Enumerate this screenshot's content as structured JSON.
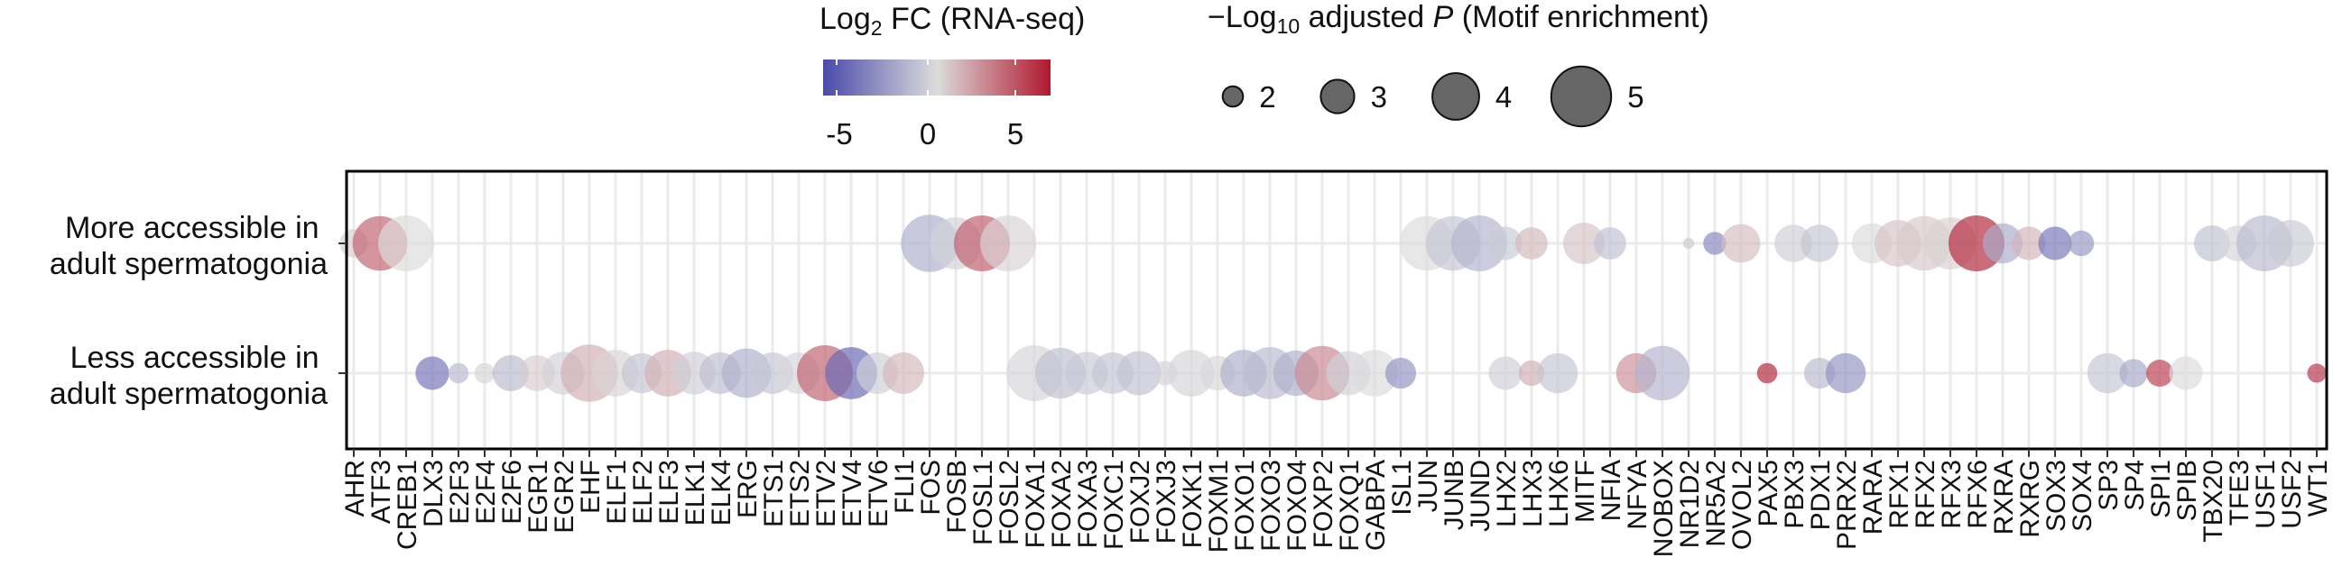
{
  "chart_data": {
    "type": "scatter",
    "subtype": "bubble",
    "x_categories": [
      "AHR",
      "ATF3",
      "CREB1",
      "DLX3",
      "E2F3",
      "E2F4",
      "E2F6",
      "EGR1",
      "EGR2",
      "EHF",
      "ELF1",
      "ELF2",
      "ELF3",
      "ELK1",
      "ELK4",
      "ERG",
      "ETS1",
      "ETS2",
      "ETV2",
      "ETV4",
      "ETV6",
      "FLI1",
      "FOS",
      "FOSB",
      "FOSL1",
      "FOSL2",
      "FOXA1",
      "FOXA2",
      "FOXA3",
      "FOXC1",
      "FOXJ2",
      "FOXJ3",
      "FOXK1",
      "FOXM1",
      "FOXO1",
      "FOXO3",
      "FOXO4",
      "FOXP2",
      "FOXQ1",
      "GABPA",
      "ISL1",
      "JUN",
      "JUNB",
      "JUND",
      "LHX2",
      "LHX3",
      "LHX6",
      "MITF",
      "NFIA",
      "NFYA",
      "NOBOX",
      "NR1D2",
      "NR5A2",
      "OVOL2",
      "PAX5",
      "PBX3",
      "PDX1",
      "PRRX2",
      "RARA",
      "RFX1",
      "RFX2",
      "RFX3",
      "RFX6",
      "RXRA",
      "RXRG",
      "SOX3",
      "SOX4",
      "SP3",
      "SP4",
      "SPI1",
      "SPIB",
      "TBX20",
      "TFE3",
      "USF1",
      "USF2",
      "WT1"
    ],
    "y_categories": [
      "More accessible in adult spermatogonia",
      "Less accessible in adult spermatogonia"
    ],
    "color_legend": {
      "title": "Log2 FC (RNA-seq)",
      "title_base": "Log",
      "title_sub": "2",
      "title_rest": " FC (RNA-seq)",
      "ticks": [
        "-5",
        "0",
        "5"
      ],
      "range": [
        -6.5,
        6.5
      ],
      "low_color": "#4a4aaa",
      "mid_color": "#dcdcdc",
      "high_color": "#b0182e"
    },
    "size_legend": {
      "title": "−Log10 adjusted P (Motif enrichment)",
      "title_minus": "−",
      "title_base": "Log",
      "title_sub": "10",
      "title_mid": " adjusted ",
      "title_italic": "P",
      "title_rest": " (Motif enrichment)",
      "values": [
        2,
        3,
        4,
        5
      ],
      "labels": [
        "2",
        "3",
        "4",
        "5"
      ]
    },
    "points": [
      {
        "x": "AHR",
        "y": "More accessible in adult spermatogonia",
        "size": 2.6,
        "color": 0.5
      },
      {
        "x": "ATF3",
        "y": "More accessible in adult spermatogonia",
        "size": 4.6,
        "color": 4.0
      },
      {
        "x": "CREB1",
        "y": "More accessible in adult spermatogonia",
        "size": 4.7,
        "color": 0.0
      },
      {
        "x": "FOS",
        "y": "More accessible in adult spermatogonia",
        "size": 4.8,
        "color": -2.0
      },
      {
        "x": "FOSB",
        "y": "More accessible in adult spermatogonia",
        "size": 4.4,
        "color": -0.5
      },
      {
        "x": "FOSL1",
        "y": "More accessible in adult spermatogonia",
        "size": 4.7,
        "color": 4.2
      },
      {
        "x": "FOSL2",
        "y": "More accessible in adult spermatogonia",
        "size": 4.7,
        "color": 0.3
      },
      {
        "x": "JUN",
        "y": "More accessible in adult spermatogonia",
        "size": 4.6,
        "color": 0.0
      },
      {
        "x": "JUNB",
        "y": "More accessible in adult spermatogonia",
        "size": 4.6,
        "color": -1.0
      },
      {
        "x": "JUND",
        "y": "More accessible in adult spermatogonia",
        "size": 4.7,
        "color": -1.8
      },
      {
        "x": "LHX2",
        "y": "More accessible in adult spermatogonia",
        "size": 3.0,
        "color": -0.8
      },
      {
        "x": "LHX3",
        "y": "More accessible in adult spermatogonia",
        "size": 2.9,
        "color": 1.2
      },
      {
        "x": "MITF",
        "y": "More accessible in adult spermatogonia",
        "size": 3.6,
        "color": 0.8
      },
      {
        "x": "NFIA",
        "y": "More accessible in adult spermatogonia",
        "size": 2.9,
        "color": -1.2
      },
      {
        "x": "NR1D2",
        "y": "More accessible in adult spermatogonia",
        "size": 1.3,
        "color": -0.8
      },
      {
        "x": "NR5A2",
        "y": "More accessible in adult spermatogonia",
        "size": 2.2,
        "color": -3.8
      },
      {
        "x": "OVOL2",
        "y": "More accessible in adult spermatogonia",
        "size": 3.4,
        "color": 1.0
      },
      {
        "x": "PBX3",
        "y": "More accessible in adult spermatogonia",
        "size": 3.3,
        "color": -0.6
      },
      {
        "x": "PDX1",
        "y": "More accessible in adult spermatogonia",
        "size": 3.3,
        "color": -1.0
      },
      {
        "x": "RARA",
        "y": "More accessible in adult spermatogonia",
        "size": 3.5,
        "color": 0.0
      },
      {
        "x": "RFX1",
        "y": "More accessible in adult spermatogonia",
        "size": 4.0,
        "color": 0.8
      },
      {
        "x": "RFX2",
        "y": "More accessible in adult spermatogonia",
        "size": 4.6,
        "color": 0.6
      },
      {
        "x": "RFX3",
        "y": "More accessible in adult spermatogonia",
        "size": 4.4,
        "color": 0.4
      },
      {
        "x": "RFX6",
        "y": "More accessible in adult spermatogonia",
        "size": 4.7,
        "color": 6.0
      },
      {
        "x": "RXRA",
        "y": "More accessible in adult spermatogonia",
        "size": 3.5,
        "color": -2.2
      },
      {
        "x": "RXRG",
        "y": "More accessible in adult spermatogonia",
        "size": 3.0,
        "color": 1.3
      },
      {
        "x": "SOX3",
        "y": "More accessible in adult spermatogonia",
        "size": 3.0,
        "color": -4.5
      },
      {
        "x": "SOX4",
        "y": "More accessible in adult spermatogonia",
        "size": 2.4,
        "color": -3.0
      },
      {
        "x": "TBX20",
        "y": "More accessible in adult spermatogonia",
        "size": 3.2,
        "color": -1.2
      },
      {
        "x": "TFE3",
        "y": "More accessible in adult spermatogonia",
        "size": 3.2,
        "color": -0.3
      },
      {
        "x": "USF1",
        "y": "More accessible in adult spermatogonia",
        "size": 4.7,
        "color": -1.5
      },
      {
        "x": "USF2",
        "y": "More accessible in adult spermatogonia",
        "size": 4.0,
        "color": -0.8
      },
      {
        "x": "DLX3",
        "y": "Less accessible in adult spermatogonia",
        "size": 3.0,
        "color": -4.6
      },
      {
        "x": "E2F3",
        "y": "Less accessible in adult spermatogonia",
        "size": 2.0,
        "color": -1.5
      },
      {
        "x": "E2F4",
        "y": "Less accessible in adult spermatogonia",
        "size": 2.0,
        "color": -0.3
      },
      {
        "x": "E2F6",
        "y": "Less accessible in adult spermatogonia",
        "size": 3.2,
        "color": -1.5
      },
      {
        "x": "EGR1",
        "y": "Less accessible in adult spermatogonia",
        "size": 3.2,
        "color": 0.5
      },
      {
        "x": "EGR2",
        "y": "Less accessible in adult spermatogonia",
        "size": 3.7,
        "color": -0.4
      },
      {
        "x": "EHF",
        "y": "Less accessible in adult spermatogonia",
        "size": 4.8,
        "color": 1.5
      },
      {
        "x": "ELF1",
        "y": "Less accessible in adult spermatogonia",
        "size": 4.0,
        "color": 0.3
      },
      {
        "x": "ELF2",
        "y": "Less accessible in adult spermatogonia",
        "size": 3.5,
        "color": -1.0
      },
      {
        "x": "ELF3",
        "y": "Less accessible in adult spermatogonia",
        "size": 4.0,
        "color": 1.5
      },
      {
        "x": "ELK1",
        "y": "Less accessible in adult spermatogonia",
        "size": 3.7,
        "color": -0.6
      },
      {
        "x": "ELK4",
        "y": "Less accessible in adult spermatogonia",
        "size": 3.6,
        "color": -1.3
      },
      {
        "x": "ERG",
        "y": "Less accessible in adult spermatogonia",
        "size": 4.2,
        "color": -2.0
      },
      {
        "x": "ETS1",
        "y": "Less accessible in adult spermatogonia",
        "size": 3.6,
        "color": -1.0
      },
      {
        "x": "ETS2",
        "y": "Less accessible in adult spermatogonia",
        "size": 3.6,
        "color": -0.3
      },
      {
        "x": "ETV2",
        "y": "Less accessible in adult spermatogonia",
        "size": 4.7,
        "color": 4.0
      },
      {
        "x": "ETV4",
        "y": "Less accessible in adult spermatogonia",
        "size": 4.4,
        "color": -5.2
      },
      {
        "x": "ETV6",
        "y": "Less accessible in adult spermatogonia",
        "size": 3.6,
        "color": -0.6
      },
      {
        "x": "FLI1",
        "y": "Less accessible in adult spermatogonia",
        "size": 3.6,
        "color": 1.2
      },
      {
        "x": "FOXA1",
        "y": "Less accessible in adult spermatogonia",
        "size": 4.7,
        "color": -0.3
      },
      {
        "x": "FOXA2",
        "y": "Less accessible in adult spermatogonia",
        "size": 4.3,
        "color": -1.3
      },
      {
        "x": "FOXA3",
        "y": "Less accessible in adult spermatogonia",
        "size": 3.7,
        "color": -0.8
      },
      {
        "x": "FOXC1",
        "y": "Less accessible in adult spermatogonia",
        "size": 3.6,
        "color": -1.0
      },
      {
        "x": "FOXJ2",
        "y": "Less accessible in adult spermatogonia",
        "size": 3.8,
        "color": -1.2
      },
      {
        "x": "FOXJ3",
        "y": "Less accessible in adult spermatogonia",
        "size": 2.3,
        "color": -0.5
      },
      {
        "x": "FOXK1",
        "y": "Less accessible in adult spermatogonia",
        "size": 4.0,
        "color": -0.3
      },
      {
        "x": "FOXM1",
        "y": "Less accessible in adult spermatogonia",
        "size": 3.1,
        "color": -0.2
      },
      {
        "x": "FOXO1",
        "y": "Less accessible in adult spermatogonia",
        "size": 4.0,
        "color": -2.0
      },
      {
        "x": "FOXO3",
        "y": "Less accessible in adult spermatogonia",
        "size": 4.4,
        "color": -1.5
      },
      {
        "x": "FOXO4",
        "y": "Less accessible in adult spermatogonia",
        "size": 3.9,
        "color": -2.0
      },
      {
        "x": "FOXP2",
        "y": "Less accessible in adult spermatogonia",
        "size": 4.6,
        "color": 2.8
      },
      {
        "x": "FOXQ1",
        "y": "Less accessible in adult spermatogonia",
        "size": 3.8,
        "color": -0.5
      },
      {
        "x": "GABPA",
        "y": "Less accessible in adult spermatogonia",
        "size": 4.0,
        "color": 0.0
      },
      {
        "x": "ISL1",
        "y": "Less accessible in adult spermatogonia",
        "size": 2.8,
        "color": -3.2
      },
      {
        "x": "LHX2",
        "y": "Less accessible in adult spermatogonia",
        "size": 3.0,
        "color": -0.6
      },
      {
        "x": "LHX3",
        "y": "Less accessible in adult spermatogonia",
        "size": 2.4,
        "color": 1.5
      },
      {
        "x": "LHX6",
        "y": "Less accessible in adult spermatogonia",
        "size": 3.5,
        "color": -1.0
      },
      {
        "x": "NFYA",
        "y": "Less accessible in adult spermatogonia",
        "size": 3.5,
        "color": 2.5
      },
      {
        "x": "NOBOX",
        "y": "Less accessible in adult spermatogonia",
        "size": 4.6,
        "color": -1.8
      },
      {
        "x": "PAX5",
        "y": "Less accessible in adult spermatogonia",
        "size": 2.0,
        "color": 6.0
      },
      {
        "x": "PDX1",
        "y": "Less accessible in adult spermatogonia",
        "size": 2.8,
        "color": -1.5
      },
      {
        "x": "PRRX2",
        "y": "Less accessible in adult spermatogonia",
        "size": 3.5,
        "color": -3.2
      },
      {
        "x": "SP3",
        "y": "Less accessible in adult spermatogonia",
        "size": 3.5,
        "color": -1.0
      },
      {
        "x": "SP4",
        "y": "Less accessible in adult spermatogonia",
        "size": 2.6,
        "color": -2.3
      },
      {
        "x": "SPI1",
        "y": "Less accessible in adult spermatogonia",
        "size": 2.5,
        "color": 5.2
      },
      {
        "x": "SPIB",
        "y": "Less accessible in adult spermatogonia",
        "size": 3.0,
        "color": 0.0
      },
      {
        "x": "WT1",
        "y": "Less accessible in adult spermatogonia",
        "size": 1.9,
        "color": 5.5
      }
    ],
    "xlabel": "",
    "ylabel": "",
    "grid": true
  }
}
